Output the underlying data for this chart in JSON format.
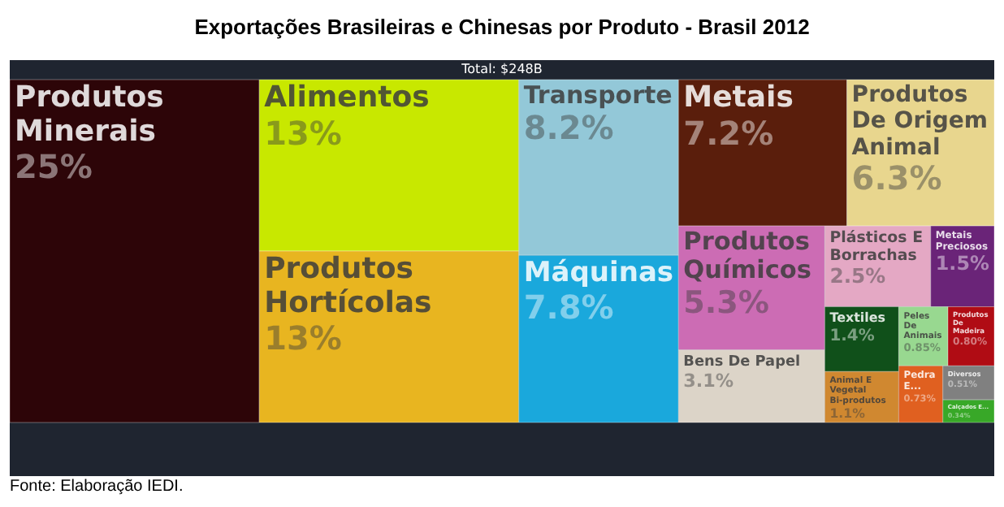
{
  "chart_data": {
    "type": "other",
    "title": "Exportações Brasileiras e Chinesas por Produto - Brasil 2012",
    "subtitle": "Total: $248B",
    "categories": [
      "Produtos Minerais",
      "Alimentos",
      "Produtos Hortícolas",
      "Transporte",
      "Máquinas",
      "Metais",
      "Produtos De Origem Animal",
      "Produtos Químicos",
      "Bens De Papel",
      "Plásticos E Borrachas",
      "Metais Preciosos",
      "Textiles",
      "Animal E Vegetal Bi-produtos",
      "Peles De Animais",
      "Produtos De Madeira",
      "Pedra E...",
      "Diversos",
      "Calçados E..."
    ],
    "values": [
      25,
      13,
      13,
      8.2,
      7.8,
      7.2,
      6.3,
      5.3,
      3.1,
      2.5,
      1.5,
      1.4,
      1.1,
      0.85,
      0.8,
      0.73,
      0.51,
      0.34
    ],
    "value_labels": [
      "25%",
      "13%",
      "13%",
      "8.2%",
      "7.8%",
      "7.2%",
      "6.3%",
      "5.3%",
      "3.1%",
      "2.5%",
      "1.5%",
      "1.4%",
      "1.1%",
      "0.85%",
      "0.80%",
      "0.73%",
      "0.51%",
      "0.34%"
    ],
    "colors": [
      "#2d0508",
      "#c8e800",
      "#e8b520",
      "#93c8d8",
      "#1aa8dc",
      "#5a1e0c",
      "#e8d68e",
      "#cc6cb4",
      "#dcd4c8",
      "#e4a8c4",
      "#6a2478",
      "#10501a",
      "#d08830",
      "#98d890",
      "#b00c14",
      "#e06020",
      "#808080",
      "#38a828"
    ],
    "annotations": [
      "Fonte: Elaboração IEDI."
    ]
  }
}
